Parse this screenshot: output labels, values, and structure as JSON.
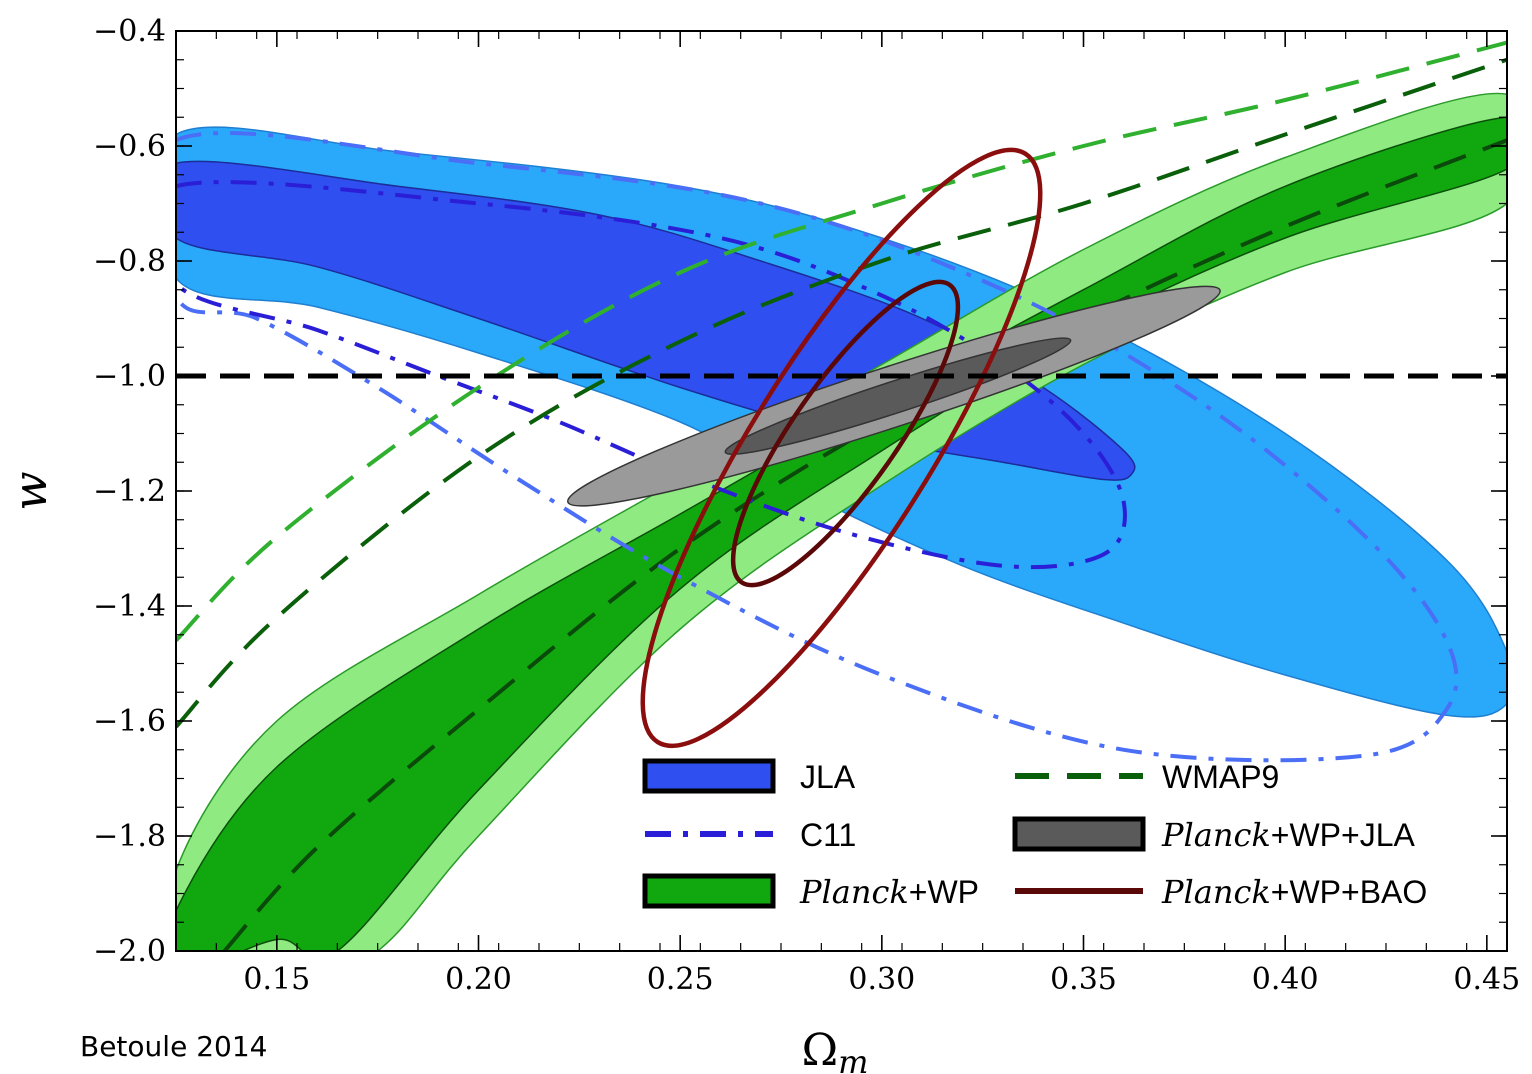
{
  "chart_data": {
    "type": "contour",
    "xlabel": "Ω",
    "xlabel_sub": "m",
    "ylabel": "w",
    "xlim": [
      0.125,
      0.455
    ],
    "ylim": [
      -2.0,
      -0.4
    ],
    "x_ticks": [
      {
        "value": 0.15,
        "label": "0.15"
      },
      {
        "value": 0.2,
        "label": "0.20"
      },
      {
        "value": 0.25,
        "label": "0.25"
      },
      {
        "value": 0.3,
        "label": "0.30"
      },
      {
        "value": 0.35,
        "label": "0.35"
      },
      {
        "value": 0.4,
        "label": "0.40"
      },
      {
        "value": 0.45,
        "label": "0.45"
      }
    ],
    "y_ticks": [
      {
        "value": -0.4,
        "label": "−0.4"
      },
      {
        "value": -0.6,
        "label": "−0.6"
      },
      {
        "value": -0.8,
        "label": "−0.8"
      },
      {
        "value": -1.0,
        "label": "−1.0"
      },
      {
        "value": -1.2,
        "label": "−1.2"
      },
      {
        "value": -1.4,
        "label": "−1.4"
      },
      {
        "value": -1.6,
        "label": "−1.6"
      },
      {
        "value": -1.8,
        "label": "−1.8"
      },
      {
        "value": -2.0,
        "label": "−2.0"
      }
    ],
    "reference_line": {
      "w": -1.0,
      "style": "dashed",
      "color": "#000000"
    },
    "series": [
      {
        "name": "JLA",
        "kind": "filled-contours",
        "colors": {
          "inner": "#2f4ff0",
          "outer": "#2aa9fb"
        },
        "outer_2sigma": [
          [
            0.125,
            -0.58
          ],
          [
            0.18,
            -0.61
          ],
          [
            0.25,
            -0.67
          ],
          [
            0.3,
            -0.76
          ],
          [
            0.35,
            -0.9
          ],
          [
            0.4,
            -1.1
          ],
          [
            0.44,
            -1.32
          ],
          [
            0.455,
            -1.48
          ],
          [
            0.455,
            -1.57
          ],
          [
            0.44,
            -1.59
          ],
          [
            0.4,
            -1.52
          ],
          [
            0.36,
            -1.43
          ],
          [
            0.32,
            -1.33
          ],
          [
            0.28,
            -1.2
          ],
          [
            0.25,
            -1.08
          ],
          [
            0.2,
            -0.96
          ],
          [
            0.16,
            -0.88
          ],
          [
            0.125,
            -0.83
          ]
        ],
        "inner_1sigma": [
          [
            0.125,
            -0.63
          ],
          [
            0.18,
            -0.67
          ],
          [
            0.23,
            -0.72
          ],
          [
            0.27,
            -0.8
          ],
          [
            0.31,
            -0.9
          ],
          [
            0.34,
            -1.02
          ],
          [
            0.36,
            -1.13
          ],
          [
            0.362,
            -1.17
          ],
          [
            0.355,
            -1.18
          ],
          [
            0.33,
            -1.15
          ],
          [
            0.29,
            -1.1
          ],
          [
            0.25,
            -1.02
          ],
          [
            0.2,
            -0.9
          ],
          [
            0.16,
            -0.81
          ],
          [
            0.125,
            -0.76
          ]
        ]
      },
      {
        "name": "C11",
        "kind": "dash-dot-contours",
        "colors": {
          "inner": "#2a1fd6",
          "outer": "#4a6ef5"
        },
        "outer_2sigma": [
          [
            0.125,
            -0.59
          ],
          [
            0.2,
            -0.63
          ],
          [
            0.27,
            -0.7
          ],
          [
            0.33,
            -0.85
          ],
          [
            0.38,
            -1.05
          ],
          [
            0.42,
            -1.28
          ],
          [
            0.44,
            -1.46
          ],
          [
            0.44,
            -1.58
          ],
          [
            0.42,
            -1.66
          ],
          [
            0.36,
            -1.65
          ],
          [
            0.3,
            -1.52
          ],
          [
            0.25,
            -1.35
          ],
          [
            0.21,
            -1.18
          ],
          [
            0.175,
            -1.02
          ],
          [
            0.145,
            -0.9
          ],
          [
            0.125,
            -0.86
          ]
        ],
        "inner_1sigma": [
          [
            0.125,
            -0.67
          ],
          [
            0.2,
            -0.7
          ],
          [
            0.26,
            -0.76
          ],
          [
            0.3,
            -0.86
          ],
          [
            0.33,
            -0.98
          ],
          [
            0.35,
            -1.1
          ],
          [
            0.36,
            -1.22
          ],
          [
            0.355,
            -1.31
          ],
          [
            0.33,
            -1.33
          ],
          [
            0.29,
            -1.27
          ],
          [
            0.25,
            -1.17
          ],
          [
            0.22,
            -1.08
          ],
          [
            0.19,
            -1.0
          ],
          [
            0.16,
            -0.92
          ],
          [
            0.125,
            -0.84
          ]
        ]
      },
      {
        "name": "Planck+WP",
        "name_italic": "Planck",
        "name_rest": "+WP",
        "kind": "filled-band",
        "colors": {
          "inner": "#11a80f",
          "outer": "#8fea82"
        },
        "outer_upper": [
          [
            0.125,
            -1.86
          ],
          [
            0.15,
            -1.6
          ],
          [
            0.2,
            -1.38
          ],
          [
            0.25,
            -1.18
          ],
          [
            0.3,
            -0.98
          ],
          [
            0.35,
            -0.78
          ],
          [
            0.4,
            -0.62
          ],
          [
            0.455,
            -0.51
          ]
        ],
        "outer_lower": [
          [
            0.125,
            -2.06
          ],
          [
            0.15,
            -2.08
          ],
          [
            0.175,
            -2.0
          ],
          [
            0.2,
            -1.8
          ],
          [
            0.25,
            -1.44
          ],
          [
            0.3,
            -1.19
          ],
          [
            0.35,
            -0.98
          ],
          [
            0.4,
            -0.82
          ],
          [
            0.455,
            -0.7
          ]
        ],
        "inner_upper": [
          [
            0.125,
            -1.93
          ],
          [
            0.15,
            -1.68
          ],
          [
            0.2,
            -1.44
          ],
          [
            0.25,
            -1.24
          ],
          [
            0.3,
            -1.04
          ],
          [
            0.35,
            -0.85
          ],
          [
            0.4,
            -0.67
          ],
          [
            0.455,
            -0.55
          ]
        ],
        "inner_lower": [
          [
            0.125,
            -2.04
          ],
          [
            0.15,
            -1.98
          ],
          [
            0.165,
            -2.0
          ],
          [
            0.2,
            -1.72
          ],
          [
            0.25,
            -1.37
          ],
          [
            0.3,
            -1.13
          ],
          [
            0.35,
            -0.92
          ],
          [
            0.4,
            -0.76
          ],
          [
            0.455,
            -0.64
          ]
        ],
        "center": [
          [
            0.137,
            -2.0
          ],
          [
            0.16,
            -1.82
          ],
          [
            0.2,
            -1.58
          ],
          [
            0.25,
            -1.3
          ],
          [
            0.3,
            -1.08
          ],
          [
            0.35,
            -0.9
          ],
          [
            0.4,
            -0.74
          ],
          [
            0.455,
            -0.59
          ]
        ]
      },
      {
        "name": "WMAP9",
        "kind": "dashed-contours",
        "colors": {
          "inner": "#0a5f0a",
          "outer": "#2fb02f"
        },
        "outer": [
          [
            0.125,
            -1.46
          ],
          [
            0.15,
            -1.28
          ],
          [
            0.2,
            -1.02
          ],
          [
            0.25,
            -0.82
          ],
          [
            0.3,
            -0.7
          ],
          [
            0.35,
            -0.6
          ],
          [
            0.4,
            -0.52
          ],
          [
            0.455,
            -0.42
          ]
        ],
        "inner": [
          [
            0.125,
            -1.61
          ],
          [
            0.15,
            -1.42
          ],
          [
            0.2,
            -1.14
          ],
          [
            0.25,
            -0.94
          ],
          [
            0.3,
            -0.8
          ],
          [
            0.35,
            -0.7
          ],
          [
            0.4,
            -0.58
          ],
          [
            0.455,
            -0.45
          ]
        ]
      },
      {
        "name": "Planck+WP+JLA",
        "name_italic": "Planck",
        "name_rest": "+WP+JLA",
        "kind": "filled-ellipses",
        "colors": {
          "inner": "#5a5a5a",
          "outer": "#9a9a9a"
        },
        "outer_2sigma": {
          "cx": 0.303,
          "cy": -1.035,
          "rx": 0.085,
          "ry": 0.105,
          "rot": -18
        },
        "inner_1sigma": {
          "cx": 0.304,
          "cy": -1.035,
          "rx": 0.045,
          "ry": 0.055,
          "rot": -18
        }
      },
      {
        "name": "Planck+WP+BAO",
        "name_italic": "Planck",
        "name_rest": "+WP+BAO",
        "kind": "line-ellipses",
        "colors": {
          "line": "#8b0e0e"
        },
        "outer_2sigma": {
          "cx": 0.29,
          "cy": -1.125,
          "rx": 0.086,
          "ry": 0.31,
          "rot": -58
        },
        "inner_1sigma": {
          "cx": 0.291,
          "cy": -1.1,
          "rx": 0.045,
          "ry": 0.18,
          "rot": -55
        }
      }
    ],
    "legend": {
      "placement": "bottom-right",
      "entries": [
        {
          "name": "JLA",
          "italic": "",
          "rest": "JLA",
          "swatch": "filled-blue"
        },
        {
          "name": "WMAP9",
          "italic": "",
          "rest": "WMAP9",
          "swatch": "dashed-darkgreen"
        },
        {
          "name": "C11",
          "italic": "",
          "rest": "C11",
          "swatch": "dashdot-blue"
        },
        {
          "name": "Planck+WP+JLA",
          "italic": "Planck",
          "rest": "+WP+JLA",
          "swatch": "filled-gray"
        },
        {
          "name": "Planck+WP",
          "italic": "Planck",
          "rest": "+WP",
          "swatch": "filled-green"
        },
        {
          "name": "Planck+WP+BAO",
          "italic": "Planck",
          "rest": "+WP+BAO",
          "swatch": "line-darkred"
        }
      ]
    }
  },
  "credit": "Betoule 2014"
}
